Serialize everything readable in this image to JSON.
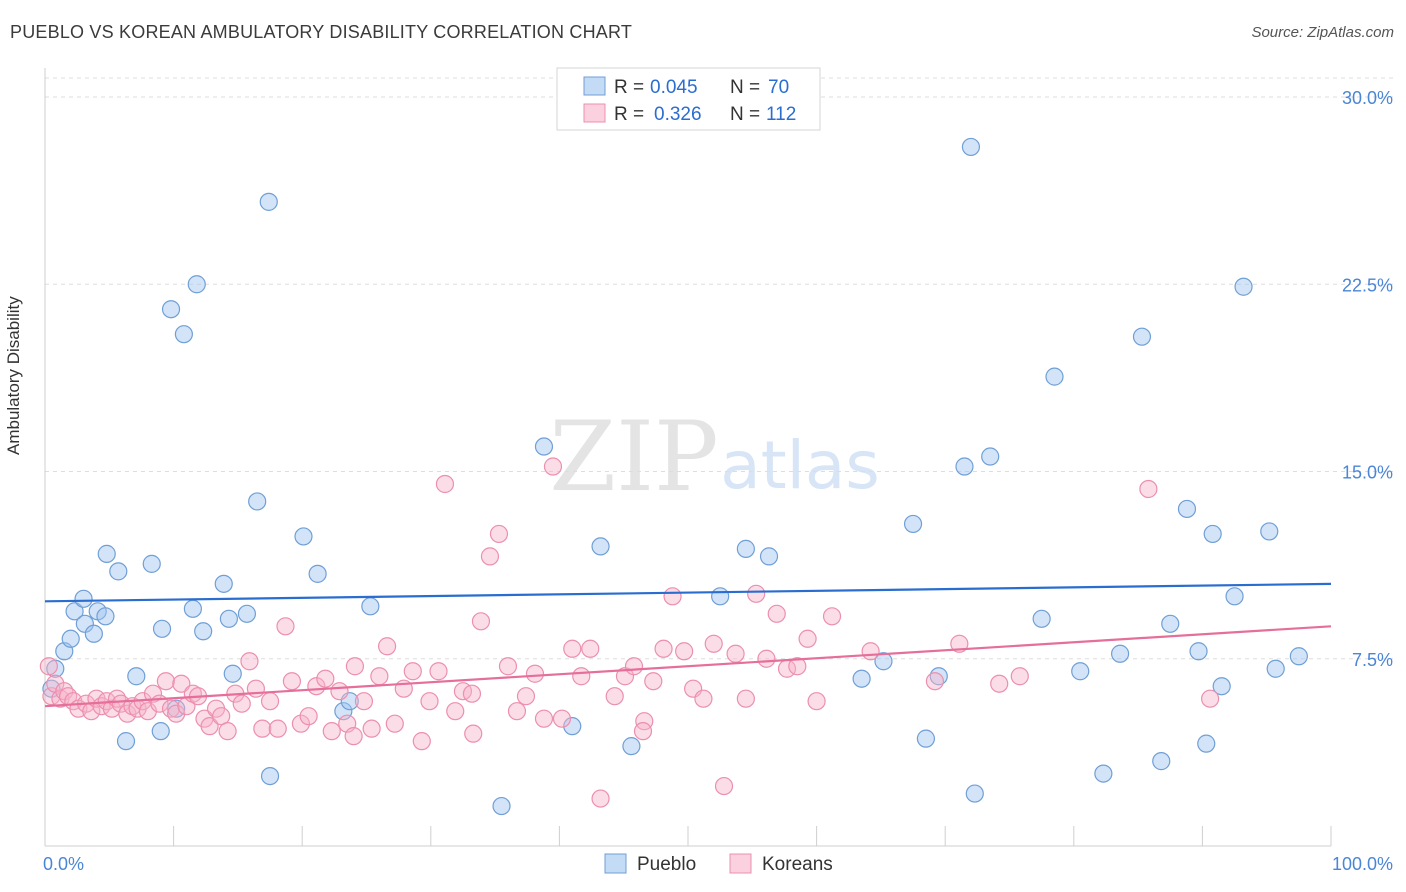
{
  "header": {
    "title": "PUEBLO VS KOREAN AMBULATORY DISABILITY CORRELATION CHART",
    "source": "Source: ZipAtlas.com"
  },
  "watermark": {
    "zip": "ZIP",
    "atlas": "atlas"
  },
  "legend_top": {
    "rows": [
      {
        "r_label": "R =",
        "r_value": "0.045",
        "n_label": "N =",
        "n_value": "70",
        "color": "#9dc3f0"
      },
      {
        "r_label": "R =",
        "r_value": "0.326",
        "n_label": "N =",
        "n_value": "112",
        "color": "#f7b3c9"
      }
    ]
  },
  "legend_bottom": [
    {
      "label": "Pueblo",
      "color": "#9dc3f0"
    },
    {
      "label": "Koreans",
      "color": "#f7b3c9"
    }
  ],
  "chart_data": {
    "type": "scatter",
    "ylabel": "Ambulatory Disability",
    "xlabel": "",
    "xlim": [
      0,
      100
    ],
    "ylim": [
      0,
      30
    ],
    "x_tick_labels": [
      {
        "value": 0,
        "label": "0.0%"
      },
      {
        "value": 100,
        "label": "100.0%"
      }
    ],
    "y_tick_labels": [
      {
        "value": 7.5,
        "label": "7.5%"
      },
      {
        "value": 15,
        "label": "15.0%"
      },
      {
        "value": 22.5,
        "label": "22.5%"
      },
      {
        "value": 30,
        "label": "30.0%"
      }
    ],
    "series": [
      {
        "name": "Pueblo",
        "color": "#9dc3f0",
        "stroke": "#6f9fd6",
        "trend_color": "#2a6dd0",
        "trend": [
          [
            0,
            9.8
          ],
          [
            100,
            10.5
          ]
        ],
        "points": [
          [
            0.5,
            6.3
          ],
          [
            0.8,
            7.1
          ],
          [
            1.5,
            7.8
          ],
          [
            2,
            8.3
          ],
          [
            2.3,
            9.4
          ],
          [
            3,
            9.9
          ],
          [
            3.1,
            8.9
          ],
          [
            3.8,
            8.5
          ],
          [
            4.1,
            9.4
          ],
          [
            4.7,
            9.2
          ],
          [
            4.8,
            11.7
          ],
          [
            5.7,
            11.0
          ],
          [
            6.3,
            4.2
          ],
          [
            7.1,
            6.8
          ],
          [
            8.3,
            11.3
          ],
          [
            9,
            4.6
          ],
          [
            9.1,
            8.7
          ],
          [
            9.8,
            21.5
          ],
          [
            10.2,
            5.5
          ],
          [
            10.8,
            20.5
          ],
          [
            11.5,
            9.5
          ],
          [
            11.8,
            22.5
          ],
          [
            12.3,
            8.6
          ],
          [
            13.9,
            10.5
          ],
          [
            14.3,
            9.1
          ],
          [
            14.6,
            6.9
          ],
          [
            15.7,
            9.3
          ],
          [
            16.5,
            13.8
          ],
          [
            17.4,
            25.8
          ],
          [
            17.5,
            2.8
          ],
          [
            20.1,
            12.4
          ],
          [
            21.2,
            10.9
          ],
          [
            23.2,
            5.4
          ],
          [
            23.7,
            5.8
          ],
          [
            25.3,
            9.6
          ],
          [
            35.5,
            1.6
          ],
          [
            38.8,
            16.0
          ],
          [
            41,
            4.8
          ],
          [
            43.2,
            12.0
          ],
          [
            45.6,
            4.0
          ],
          [
            52.5,
            10.0
          ],
          [
            54.5,
            11.9
          ],
          [
            56.3,
            11.6
          ],
          [
            63.5,
            6.7
          ],
          [
            65.2,
            7.4
          ],
          [
            67.5,
            12.9
          ],
          [
            68.5,
            4.3
          ],
          [
            69.5,
            6.8
          ],
          [
            71.5,
            15.2
          ],
          [
            72,
            28.0
          ],
          [
            72.3,
            2.1
          ],
          [
            73.5,
            15.6
          ],
          [
            77.5,
            9.1
          ],
          [
            78.5,
            18.8
          ],
          [
            80.5,
            7.0
          ],
          [
            82.3,
            2.9
          ],
          [
            83.6,
            7.7
          ],
          [
            85.3,
            20.4
          ],
          [
            86.8,
            3.4
          ],
          [
            87.5,
            8.9
          ],
          [
            88.8,
            13.5
          ],
          [
            89.7,
            7.8
          ],
          [
            90.3,
            4.1
          ],
          [
            90.8,
            12.5
          ],
          [
            91.5,
            6.4
          ],
          [
            92.5,
            10.0
          ],
          [
            93.2,
            22.4
          ],
          [
            95.2,
            12.6
          ],
          [
            95.7,
            7.1
          ],
          [
            97.5,
            7.6
          ]
        ]
      },
      {
        "name": "Koreans",
        "color": "#f7b3c9",
        "stroke": "#ec8fae",
        "trend_color": "#e56f9a",
        "trend": [
          [
            0,
            5.6
          ],
          [
            100,
            8.8
          ]
        ],
        "points": [
          [
            0.3,
            7.2
          ],
          [
            0.5,
            6.0
          ],
          [
            0.8,
            6.5
          ],
          [
            1.2,
            5.9
          ],
          [
            1.5,
            6.2
          ],
          [
            1.8,
            6.0
          ],
          [
            2.2,
            5.8
          ],
          [
            2.6,
            5.5
          ],
          [
            3.2,
            5.7
          ],
          [
            3.6,
            5.4
          ],
          [
            4,
            5.9
          ],
          [
            4.4,
            5.6
          ],
          [
            4.8,
            5.8
          ],
          [
            5.2,
            5.5
          ],
          [
            5.6,
            5.9
          ],
          [
            5.9,
            5.7
          ],
          [
            6.4,
            5.3
          ],
          [
            6.8,
            5.6
          ],
          [
            7.2,
            5.5
          ],
          [
            7.6,
            5.8
          ],
          [
            8,
            5.4
          ],
          [
            8.4,
            6.1
          ],
          [
            8.9,
            5.7
          ],
          [
            9.4,
            6.6
          ],
          [
            9.8,
            5.5
          ],
          [
            10.2,
            5.3
          ],
          [
            10.6,
            6.5
          ],
          [
            11,
            5.6
          ],
          [
            11.5,
            6.1
          ],
          [
            11.9,
            6.0
          ],
          [
            12.4,
            5.1
          ],
          [
            12.8,
            4.8
          ],
          [
            13.3,
            5.5
          ],
          [
            13.7,
            5.2
          ],
          [
            14.2,
            4.6
          ],
          [
            14.8,
            6.1
          ],
          [
            15.3,
            5.7
          ],
          [
            15.9,
            7.4
          ],
          [
            16.4,
            6.3
          ],
          [
            16.9,
            4.7
          ],
          [
            17.5,
            5.8
          ],
          [
            18.1,
            4.7
          ],
          [
            18.7,
            8.8
          ],
          [
            19.2,
            6.6
          ],
          [
            19.9,
            4.9
          ],
          [
            20.5,
            5.2
          ],
          [
            21.1,
            6.4
          ],
          [
            21.8,
            6.7
          ],
          [
            22.3,
            4.6
          ],
          [
            22.9,
            6.2
          ],
          [
            23.5,
            4.9
          ],
          [
            24.1,
            7.2
          ],
          [
            24.8,
            5.8
          ],
          [
            25.4,
            4.7
          ],
          [
            26,
            6.8
          ],
          [
            26.6,
            8.0
          ],
          [
            27.2,
            4.9
          ],
          [
            27.9,
            6.3
          ],
          [
            28.6,
            7.0
          ],
          [
            29.3,
            4.2
          ],
          [
            29.9,
            5.8
          ],
          [
            30.6,
            7.0
          ],
          [
            31.1,
            14.5
          ],
          [
            31.9,
            5.4
          ],
          [
            32.5,
            6.2
          ],
          [
            33.2,
            6.1
          ],
          [
            33.9,
            9.0
          ],
          [
            34.6,
            11.6
          ],
          [
            35.3,
            12.5
          ],
          [
            36,
            7.2
          ],
          [
            36.7,
            5.4
          ],
          [
            37.4,
            6.0
          ],
          [
            38.1,
            6.9
          ],
          [
            38.8,
            5.1
          ],
          [
            39.5,
            15.2
          ],
          [
            40.2,
            5.1
          ],
          [
            41,
            7.9
          ],
          [
            41.7,
            6.8
          ],
          [
            42.4,
            7.9
          ],
          [
            43.2,
            1.9
          ],
          [
            44.3,
            6.0
          ],
          [
            45.1,
            6.8
          ],
          [
            45.8,
            7.2
          ],
          [
            46.6,
            5.0
          ],
          [
            47.3,
            6.6
          ],
          [
            48.1,
            7.9
          ],
          [
            48.8,
            10.0
          ],
          [
            49.7,
            7.8
          ],
          [
            50.4,
            6.3
          ],
          [
            51.2,
            5.9
          ],
          [
            52,
            8.1
          ],
          [
            52.8,
            2.4
          ],
          [
            53.7,
            7.7
          ],
          [
            54.5,
            5.9
          ],
          [
            55.3,
            10.1
          ],
          [
            56.1,
            7.5
          ],
          [
            56.9,
            9.3
          ],
          [
            57.7,
            7.1
          ],
          [
            58.5,
            7.2
          ],
          [
            59.3,
            8.3
          ],
          [
            61.2,
            9.2
          ],
          [
            64.2,
            7.8
          ],
          [
            69.2,
            6.6
          ],
          [
            71.1,
            8.1
          ],
          [
            75.8,
            6.8
          ],
          [
            85.8,
            14.3
          ],
          [
            90.6,
            5.9
          ],
          [
            74.2,
            6.5
          ],
          [
            60,
            5.8
          ],
          [
            46.5,
            4.6
          ],
          [
            33.3,
            4.5
          ],
          [
            24,
            4.4
          ]
        ]
      }
    ]
  }
}
